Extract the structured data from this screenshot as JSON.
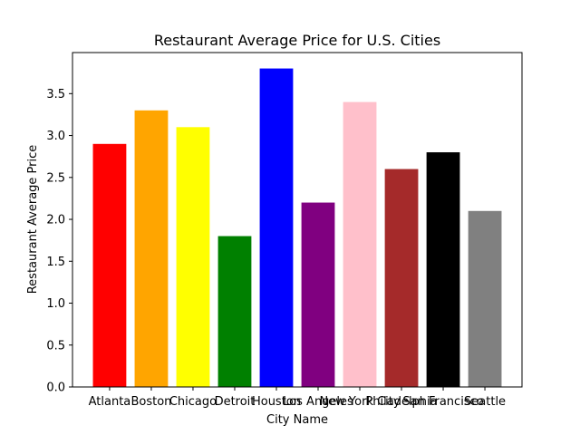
{
  "chart_data": {
    "type": "bar",
    "title": "Restaurant Average Price for U.S. Cities",
    "xlabel": "City Name",
    "ylabel": "Restaurant Average Price",
    "categories": [
      "Atlanta",
      "Boston",
      "Chicago",
      "Detroit",
      "Houston",
      "Los Angeles",
      "New York City",
      "Philadelphia",
      "San Francisco",
      "Seattle"
    ],
    "values": [
      2.9,
      3.3,
      3.1,
      1.8,
      3.8,
      2.2,
      3.4,
      2.6,
      2.8,
      2.1
    ],
    "colors": [
      "#ff0000",
      "#ffa500",
      "#ffff00",
      "#008000",
      "#0000ff",
      "#800080",
      "#ffc0cb",
      "#a52a2a",
      "#000000",
      "#808080"
    ],
    "ylim": [
      0,
      3.99
    ],
    "yticks": [
      "0.0",
      "0.5",
      "1.0",
      "1.5",
      "2.0",
      "2.5",
      "3.0",
      "3.5"
    ],
    "grid": false,
    "legend": "none"
  }
}
